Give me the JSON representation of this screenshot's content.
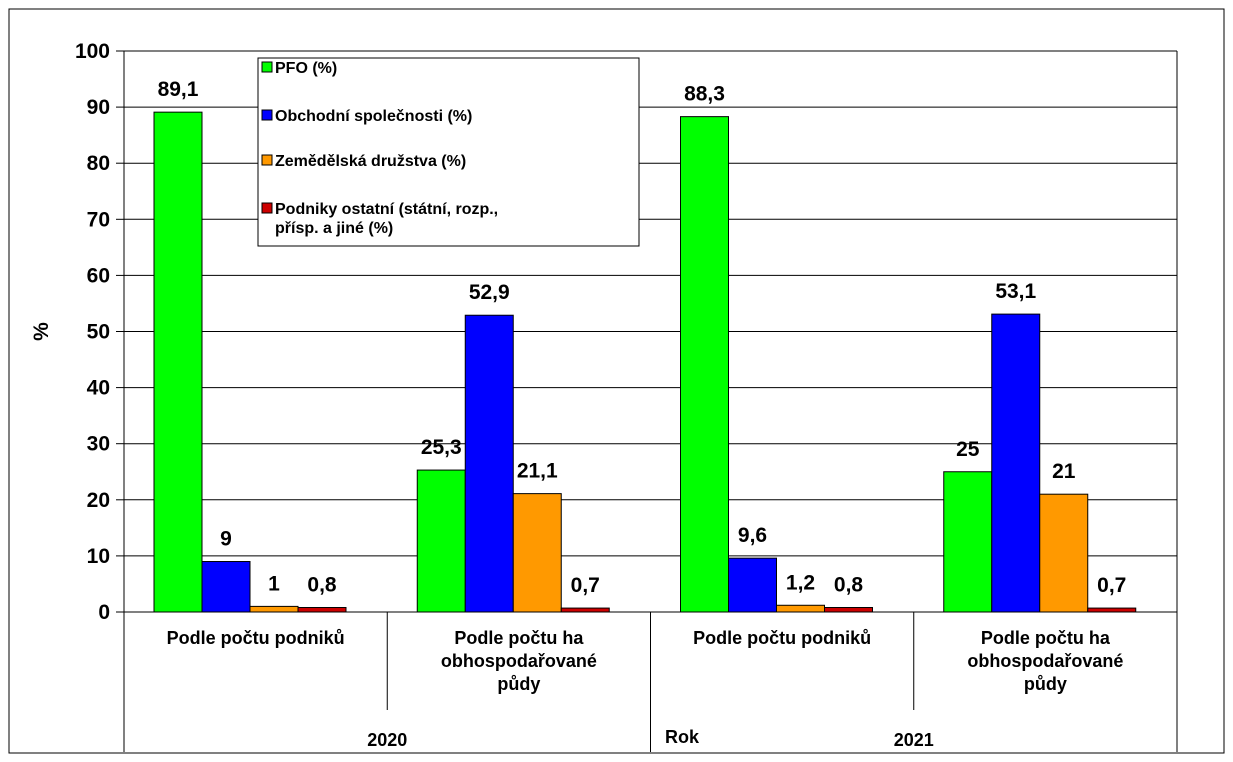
{
  "chart_data": {
    "type": "bar",
    "title": "",
    "xlabel": "Rok",
    "ylabel": "%",
    "ylim": [
      0,
      100
    ],
    "yticks": [
      0,
      10,
      20,
      30,
      40,
      50,
      60,
      70,
      80,
      90,
      100
    ],
    "grid": true,
    "legend_position": "top-left inside plot",
    "groups": [
      {
        "label": "2020",
        "categories": [
          "Podle počtu podniků",
          "Podle počtu ha obhospodařované půdy"
        ]
      },
      {
        "label": "2021",
        "categories": [
          "Podle počtu podniků",
          "Podle počtu ha obhospodařované půdy"
        ]
      }
    ],
    "categories": [
      {
        "lines": [
          "Podle počtu podniků"
        ]
      },
      {
        "lines": [
          "Podle počtu ha",
          "obhospodařované",
          "půdy"
        ]
      },
      {
        "lines": [
          "Podle počtu podniků"
        ]
      },
      {
        "lines": [
          "Podle počtu ha",
          "obhospodařované",
          "půdy"
        ]
      }
    ],
    "series": [
      {
        "name": "PFO (%)",
        "color": "#00ff00",
        "values": [
          89.1,
          25.3,
          88.3,
          25
        ],
        "labels": [
          "89,1",
          "25,3",
          "88,3",
          "25"
        ]
      },
      {
        "name": "Obchodní společnosti (%)",
        "color": "#0000ff",
        "values": [
          9,
          52.9,
          9.6,
          53.1
        ],
        "labels": [
          "9",
          "52,9",
          "9,6",
          "53,1"
        ]
      },
      {
        "name": "Zemědělská družstva (%)",
        "color": "#ff9900",
        "values": [
          1,
          21.1,
          1.2,
          21
        ],
        "labels": [
          "1",
          "21,1",
          "1,2",
          "21"
        ]
      },
      {
        "name_lines": [
          "Podniky ostatní (státní, rozp.,",
          "přísp. a jiné (%)"
        ],
        "color": "#cc0000",
        "values": [
          0.8,
          0.7,
          0.8,
          0.7
        ],
        "labels": [
          "0,8",
          "0,7",
          "0,8",
          "0,7"
        ]
      }
    ]
  }
}
